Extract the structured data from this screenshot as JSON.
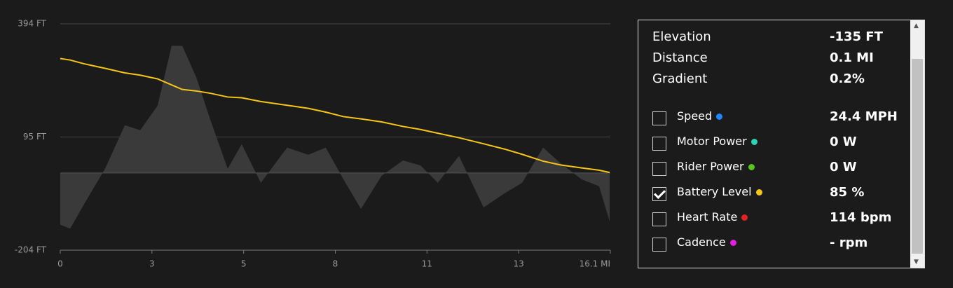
{
  "chart_data": {
    "type": "area",
    "x": [
      0,
      0.29,
      0.7,
      1.31,
      1.89,
      2.34,
      2.85,
      3.26,
      3.57,
      3.98,
      4.39,
      4.9,
      5.31,
      5.87,
      6.64,
      7.26,
      7.77,
      8.29,
      8.8,
      9.41,
      10.03,
      10.54,
      11.05,
      11.67,
      12.39,
      13.0,
      13.52,
      14.13,
      14.64,
      15.26,
      15.77,
      16.08
    ],
    "series": [
      {
        "name": "Elevation",
        "color": "#3a3a3a",
        "values": [
          -137,
          -147,
          -82,
          11,
          126,
          113,
          178,
          336,
          336,
          253,
          141,
          11,
          76,
          -26,
          67,
          48,
          67,
          -17,
          -95,
          -7,
          33,
          20,
          -26,
          45,
          -91,
          -54,
          -26,
          67,
          26,
          -17,
          -35,
          -128
        ]
      },
      {
        "name": "Battery Level",
        "color": "#f5c518",
        "axis": "y2",
        "values": [
          100.4,
          100.2,
          99.7,
          99.1,
          98.5,
          98.2,
          97.7,
          96.9,
          96.3,
          96.1,
          95.8,
          95.3,
          95.2,
          94.7,
          94.2,
          93.8,
          93.3,
          92.7,
          92.4,
          92.0,
          91.4,
          91.0,
          90.5,
          89.9,
          89.1,
          88.4,
          87.7,
          86.8,
          86.3,
          85.9,
          85.6,
          85.3
        ]
      }
    ],
    "ylim": [
      -204,
      394
    ],
    "yticks": [
      {
        "value": -204,
        "label": "-204 FT"
      },
      {
        "value": 95,
        "label": "95 FT"
      },
      {
        "value": 394,
        "label": "394 FT"
      }
    ],
    "y2lim": [
      75,
      105
    ],
    "xlim": [
      0,
      16.1
    ],
    "xticks": [
      0,
      {
        "value": 2.683,
        "label": "3"
      },
      {
        "value": 5.367,
        "label": "5"
      },
      {
        "value": 8.05,
        "label": "8"
      },
      {
        "value": 10.733,
        "label": "11"
      },
      {
        "value": 13.417,
        "label": "13"
      },
      {
        "value": 16.1,
        "label": "16.1 MI"
      }
    ],
    "grid": true
  },
  "panel": {
    "stats": [
      {
        "label": "Elevation",
        "value": "-135 FT"
      },
      {
        "label": "Distance",
        "value": "0.1 MI"
      },
      {
        "label": "Gradient",
        "value": "0.2%"
      }
    ],
    "metrics": [
      {
        "label": "Speed",
        "color": "#1e88ff",
        "checked": false,
        "value": "24.4 MPH"
      },
      {
        "label": "Motor Power",
        "color": "#2ed3b5",
        "checked": false,
        "value": "0 W"
      },
      {
        "label": "Rider Power",
        "color": "#5ac41e",
        "checked": false,
        "value": "0 W"
      },
      {
        "label": "Battery Level",
        "color": "#f5c518",
        "checked": true,
        "value": "85 %"
      },
      {
        "label": "Heart Rate",
        "color": "#e52222",
        "checked": false,
        "value": "114 bpm"
      },
      {
        "label": "Cadence",
        "color": "#e51ee0",
        "checked": false,
        "value": "- rpm"
      }
    ]
  }
}
